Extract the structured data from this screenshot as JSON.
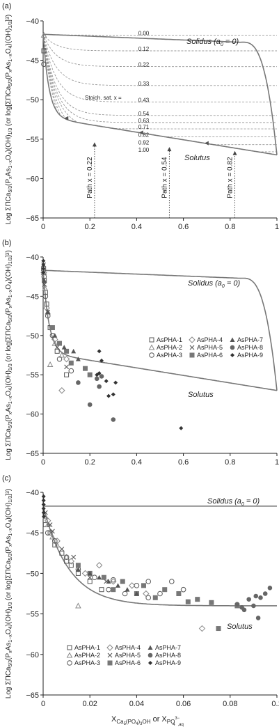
{
  "panel_labels": [
    "(a)",
    "(b)",
    "(c)"
  ],
  "xlabel_main": "X",
  "xlabel_sub1": "Ca",
  "xlabel_sub2": "5",
  "xlabel_sub3": "(PO",
  "xlabel_sub4": "4",
  "xlabel_sub5": ")",
  "xlabel_sub6": "3",
  "xlabel_sub7": "OH",
  "xlabel_or": " or X",
  "xlabel_sub8": "PO",
  "xlabel_sup1": "3−",
  "xlabel_sub9": "4",
  "xlabel_sub10": ",aq",
  "ylabel": "Log ΣΠCa5/3(PxAs1−xO4)(OH)1/3 (or log[ΣΠCa5/3(PxAs1−xO4)(OH)1/3]3)",
  "ylabel_a": "Log ΣΠCa",
  "ylabel_b": "5/3",
  "ylabel_c": "(P",
  "ylabel_d": "x",
  "ylabel_e": "As",
  "ylabel_f": "1−x",
  "ylabel_g": "O",
  "ylabel_h": "4",
  "ylabel_i": ")(OH)",
  "ylabel_j": "1/3",
  "ylabel_k": " (or log[ΣΠCa",
  "ylabel_l": "5/3",
  "ylabel_m": "(P",
  "ylabel_n": "x",
  "ylabel_o": "As",
  "ylabel_p": "1−x",
  "ylabel_q": "O",
  "ylabel_r": "4",
  "ylabel_s": ")(OH)",
  "ylabel_t": "1/3",
  "ylabel_u": "]",
  "ylabel_v": "3",
  "ylabel_w": ")",
  "colors": {
    "curve": "#777777",
    "iso": "#999999",
    "marker": "#555555"
  },
  "chart_data": [
    {
      "type": "line",
      "panel": "(a)",
      "xlim": [
        0,
        1
      ],
      "ylim": [
        -65,
        -40
      ],
      "xticks": [
        "0",
        "0.2",
        "0.4",
        "0.6",
        "0.8",
        "1"
      ],
      "yticks": [
        "−40",
        "−45",
        "−50",
        "−55",
        "−60",
        "−65"
      ],
      "solidus_label": "Solidus (a",
      "solidus_sub": "0",
      "solidus_tail": " = 0)",
      "solutus_label": "Solutus",
      "stoich_label": "Stoich. sat. x =",
      "isolines": [
        {
          "x": "0.00",
          "y_end": -41.8
        },
        {
          "x": "0.12",
          "y_end": -43.8
        },
        {
          "x": "0.22",
          "y_end": -45.8
        },
        {
          "x": "0.33",
          "y_end": -48.2
        },
        {
          "x": "0.43",
          "y_end": -50.3
        },
        {
          "x": "0.54",
          "y_end": -52.0
        },
        {
          "x": "0.63",
          "y_end": -52.9
        },
        {
          "x": "0.71",
          "y_end": -53.7
        },
        {
          "x": "0.82",
          "y_end": -54.7
        },
        {
          "x": "0.92",
          "y_end": -55.7
        },
        {
          "x": "1.00",
          "y_end": -56.6
        }
      ],
      "paths": [
        {
          "label": "Path x = 0.22",
          "x": 0.22,
          "y_top": -55.4
        },
        {
          "label": "Path x = 0.54",
          "x": 0.54,
          "y_top": -56.0
        },
        {
          "label": "Path x = 0.82",
          "x": 0.82,
          "y_top": -56.5
        }
      ],
      "open_markers": [
        {
          "x": 0,
          "y": -41.8
        },
        {
          "x": 0,
          "y": -43.8
        },
        {
          "x": 0,
          "y": -45.5
        }
      ]
    },
    {
      "type": "scatter",
      "panel": "(b)",
      "xlim": [
        0,
        1
      ],
      "ylim": [
        -65,
        -40
      ],
      "xticks": [
        "0",
        "0.2",
        "0.4",
        "0.6",
        "0.8",
        "1"
      ],
      "yticks": [
        "−40",
        "−45",
        "−50",
        "−55",
        "−60",
        "−65"
      ],
      "solidus_label": "Solidus (a",
      "solidus_sub": "0",
      "solidus_tail": " = 0)",
      "solutus_label": "Solutus",
      "legend": [
        "AsPHA-1",
        "AsPHA-4",
        "AsPHA-7",
        "AsPHA-2",
        "AsPHA-5",
        "AsPHA-8",
        "AsPHA-3",
        "AsPHA-6",
        "AsPHA-9"
      ],
      "series": [
        {
          "name": "AsPHA-1",
          "marker": "sq-open",
          "points": [
            [
              0.002,
              -41.5
            ],
            [
              0.005,
              -43
            ],
            [
              0.01,
              -44.5
            ],
            [
              0.015,
              -46
            ],
            [
              0.03,
              -49
            ],
            [
              0.06,
              -52
            ],
            [
              0.1,
              -55
            ]
          ]
        },
        {
          "name": "AsPHA-2",
          "marker": "tri-open",
          "points": [
            [
              0.003,
              -42
            ],
            [
              0.008,
              -44
            ],
            [
              0.02,
              -47
            ],
            [
              0.05,
              -51
            ],
            [
              0.08,
              -52.5
            ],
            [
              0.03,
              -53.7
            ]
          ]
        },
        {
          "name": "AsPHA-3",
          "marker": "circ-open",
          "points": [
            [
              0.004,
              -42.5
            ],
            [
              0.01,
              -45
            ],
            [
              0.02,
              -47.5
            ],
            [
              0.04,
              -50
            ],
            [
              0.07,
              -53
            ],
            [
              0.12,
              -54.5
            ]
          ]
        },
        {
          "name": "AsPHA-4",
          "marker": "dia-open",
          "points": [
            [
              0.003,
              -42
            ],
            [
              0.015,
              -46.5
            ],
            [
              0.05,
              -50.5
            ],
            [
              0.1,
              -53
            ],
            [
              0.08,
              -57
            ]
          ]
        },
        {
          "name": "AsPHA-5",
          "marker": "x",
          "points": [
            [
              0.002,
              -41
            ],
            [
              0.006,
              -43.5
            ],
            [
              0.02,
              -47
            ],
            [
              0.06,
              -51.5
            ],
            [
              0.1,
              -54
            ]
          ]
        },
        {
          "name": "AsPHA-6",
          "marker": "sq-fill",
          "points": [
            [
              0.04,
              -49
            ],
            [
              0.07,
              -51
            ],
            [
              0.1,
              -52
            ],
            [
              0.12,
              -53.5
            ],
            [
              0.18,
              -54.2
            ],
            [
              0.2,
              -55
            ]
          ]
        },
        {
          "name": "AsPHA-7",
          "marker": "tri-fill",
          "points": [
            [
              0.005,
              -43
            ],
            [
              0.02,
              -47
            ],
            [
              0.05,
              -50
            ],
            [
              0.09,
              -51.5
            ],
            [
              0.13,
              -52
            ],
            [
              0.15,
              -53
            ]
          ]
        },
        {
          "name": "AsPHA-8",
          "marker": "circ-fill",
          "points": [
            [
              0.15,
              -56
            ],
            [
              0.2,
              -58.8
            ],
            [
              0.23,
              -55.5
            ],
            [
              0.25,
              -55.2
            ],
            [
              0.3,
              -60.7
            ],
            [
              0.24,
              -56.5
            ]
          ]
        },
        {
          "name": "AsPHA-9",
          "marker": "dia-fill",
          "points": [
            [
              0.001,
              -40.5
            ],
            [
              0.001,
              -41
            ],
            [
              0.001,
              -41.5
            ],
            [
              0.001,
              -42
            ],
            [
              0.23,
              -55
            ],
            [
              0.24,
              -54.8
            ],
            [
              0.25,
              -53.2
            ],
            [
              0.24,
              -52
            ],
            [
              0.27,
              -55.8
            ],
            [
              0.28,
              -57.7
            ],
            [
              0.3,
              -57.5
            ],
            [
              0.31,
              -56
            ],
            [
              0.59,
              -61.8
            ]
          ]
        }
      ]
    },
    {
      "type": "scatter",
      "panel": "(c)",
      "xlim": [
        0,
        0.1
      ],
      "ylim": [
        -65,
        -40
      ],
      "xticks": [
        "0",
        "0.02",
        "0.04",
        "0.06",
        "0.08",
        "0.1"
      ],
      "yticks": [
        "−40",
        "−45",
        "−50",
        "−55",
        "−60",
        "−65"
      ],
      "solidus_label": "Solidus (a",
      "solidus_sub": "0",
      "solidus_tail": " = 0)",
      "solutus_label": "Solutus",
      "legend": [
        "AsPHA-1",
        "AsPHA-4",
        "AsPHA-7",
        "AsPHA-2",
        "AsPHA-5",
        "AsPHA-8",
        "AsPHA-3",
        "AsPHA-6",
        "AsPHA-9"
      ],
      "series": [
        {
          "name": "AsPHA-1",
          "marker": "sq-open",
          "points": [
            [
              0.001,
              -44
            ],
            [
              0.003,
              -45
            ],
            [
              0.005,
              -46.5
            ],
            [
              0.008,
              -47.5
            ],
            [
              0.01,
              -48.5
            ],
            [
              0.012,
              -49
            ],
            [
              0.015,
              -50
            ],
            [
              0.02,
              -51
            ],
            [
              0.025,
              -52
            ]
          ]
        },
        {
          "name": "AsPHA-2",
          "marker": "tri-open",
          "points": [
            [
              0.001,
              -43
            ],
            [
              0.002,
              -44
            ],
            [
              0.004,
              -45.5
            ],
            [
              0.006,
              -46.5
            ],
            [
              0.015,
              -54
            ],
            [
              0.01,
              -48
            ]
          ]
        },
        {
          "name": "AsPHA-3",
          "marker": "circ-open",
          "points": [
            [
              0.002,
              -45
            ],
            [
              0.005,
              -46
            ],
            [
              0.01,
              -48
            ],
            [
              0.015,
              -49.5
            ],
            [
              0.022,
              -50.5
            ],
            [
              0.028,
              -52
            ],
            [
              0.035,
              -52.5
            ],
            [
              0.045,
              -53
            ],
            [
              0.05,
              -52.5
            ],
            [
              0.055,
              -51
            ],
            [
              0.06,
              -52
            ],
            [
              0.045,
              -51
            ],
            [
              0.03,
              -50.8
            ],
            [
              0.04,
              -51.5
            ]
          ]
        },
        {
          "name": "AsPHA-4",
          "marker": "dia-open",
          "points": [
            [
              0.002,
              -43.5
            ],
            [
              0.006,
              -46
            ],
            [
              0.012,
              -48.5
            ],
            [
              0.018,
              -50
            ],
            [
              0.024,
              -49
            ],
            [
              0.03,
              -51
            ],
            [
              0.038,
              -51.5
            ],
            [
              0.044,
              -52.5
            ],
            [
              0.068,
              -56.8
            ]
          ]
        },
        {
          "name": "AsPHA-5",
          "marker": "x",
          "points": [
            [
              0.001,
              -42.5
            ],
            [
              0.003,
              -44
            ],
            [
              0.004,
              -44.8
            ],
            [
              0.008,
              -47
            ],
            [
              0.013,
              -48
            ],
            [
              0.02,
              -50.5
            ],
            [
              0.027,
              -51
            ]
          ]
        },
        {
          "name": "AsPHA-6",
          "marker": "sq-fill",
          "points": [
            [
              0.015,
              -49
            ],
            [
              0.02,
              -50
            ],
            [
              0.026,
              -50.5
            ],
            [
              0.03,
              -52
            ],
            [
              0.034,
              -51
            ],
            [
              0.04,
              -52.5
            ],
            [
              0.043,
              -51.5
            ],
            [
              0.048,
              -53
            ],
            [
              0.052,
              -52
            ],
            [
              0.058,
              -52.5
            ],
            [
              0.062,
              -53.5
            ],
            [
              0.066,
              -53.2
            ],
            [
              0.072,
              -53.6
            ],
            [
              0.075,
              -56.8
            ],
            [
              0.083,
              -54
            ]
          ]
        },
        {
          "name": "AsPHA-7",
          "marker": "tri-fill",
          "points": [
            [
              0.015,
              -49.5
            ],
            [
              0.02,
              -50
            ],
            [
              0.024,
              -50.5
            ],
            [
              0.028,
              -51
            ],
            [
              0.032,
              -51.5
            ],
            [
              0.036,
              -52
            ],
            [
              0.04,
              -52.5
            ]
          ]
        },
        {
          "name": "AsPHA-8",
          "marker": "circ-fill",
          "points": [
            [
              0.083,
              -53.8
            ],
            [
              0.086,
              -54.5
            ],
            [
              0.088,
              -53.2
            ],
            [
              0.09,
              -54
            ],
            [
              0.091,
              -52.8
            ],
            [
              0.092,
              -55.5
            ],
            [
              0.093,
              -53
            ],
            [
              0.095,
              -52.5
            ],
            [
              0.097,
              -51.8
            ],
            [
              0.085,
              -54.2
            ]
          ]
        },
        {
          "name": "AsPHA-9",
          "marker": "dia-fill",
          "points": [
            [
              0.0002,
              -40.5
            ],
            [
              0.0002,
              -41
            ],
            [
              0.0002,
              -41.5
            ],
            [
              0.0002,
              -42
            ],
            [
              0.0002,
              -42.5
            ],
            [
              0.0003,
              -43
            ]
          ]
        }
      ]
    }
  ]
}
